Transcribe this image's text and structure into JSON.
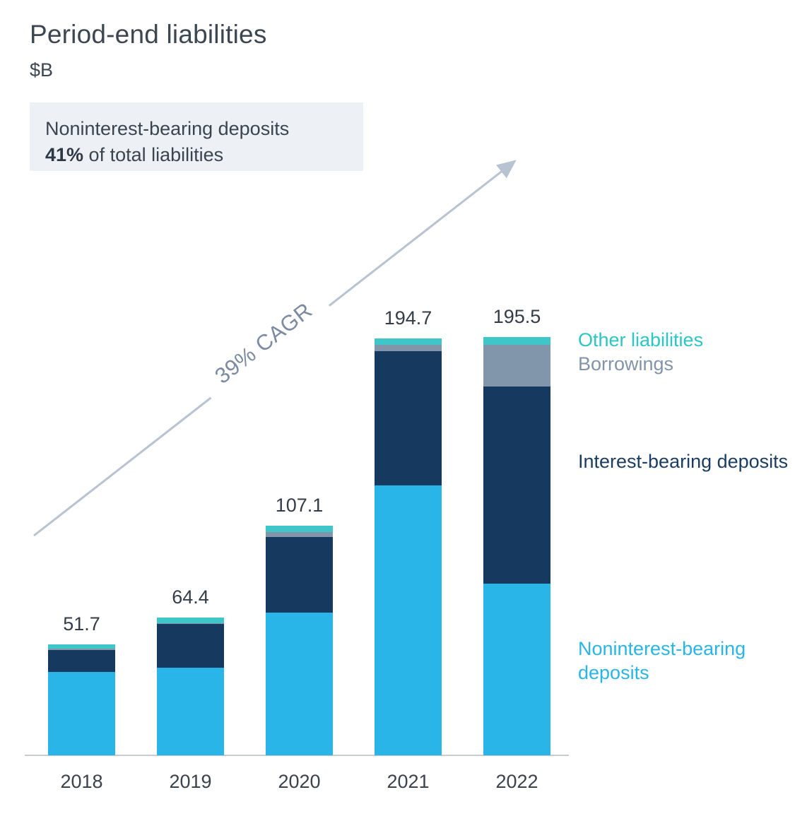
{
  "title": "Period-end liabilities",
  "subtitle": "$B",
  "callout": {
    "line1": "Noninterest-bearing deposits",
    "bold": "41%",
    "rest": " of total liabilities"
  },
  "cagr_label": "39% CAGR",
  "colors": {
    "noninterest_bearing": "#29b5e8",
    "interest_bearing": "#16395f",
    "borrowings": "#8196ab",
    "other_liabilities": "#3ec6c8",
    "arrow": "#b7c3d1",
    "callout_bg": "#edf1f5",
    "text_dark": "#3b4550"
  },
  "chart_data": {
    "type": "bar",
    "stacked": true,
    "title": "Period-end liabilities",
    "units": "$B",
    "categories": [
      "2018",
      "2019",
      "2020",
      "2021",
      "2022"
    ],
    "totals": [
      51.7,
      64.4,
      107.1,
      194.7,
      195.5
    ],
    "series": [
      {
        "name": "Noninterest-bearing deposits",
        "color": "#29b5e8",
        "values": [
          39.1,
          40.8,
          66.5,
          125.9,
          80.2
        ]
      },
      {
        "name": "Interest-bearing deposits",
        "color": "#16395f",
        "values": [
          10.2,
          20.6,
          35.5,
          62.8,
          92.0
        ]
      },
      {
        "name": "Borrowings",
        "color": "#8196ab",
        "values": [
          0.6,
          0.4,
          2.3,
          3.0,
          19.4
        ]
      },
      {
        "name": "Other liabilities",
        "color": "#3ec6c8",
        "values": [
          1.8,
          2.6,
          2.8,
          3.0,
          3.9
        ]
      }
    ],
    "annotation": "39% CAGR",
    "ylim": [
      0,
      200
    ],
    "grid": false,
    "legend_position": "right"
  },
  "legend": [
    {
      "label": "Other liabilities",
      "color": "#2cc5c6"
    },
    {
      "label": "Borrowings",
      "color": "#8294a8"
    },
    {
      "label": "Interest-bearing deposits",
      "color": "#1b3d63"
    },
    {
      "label": "Noninterest-bearing deposits",
      "color": "#29b5e8"
    }
  ]
}
